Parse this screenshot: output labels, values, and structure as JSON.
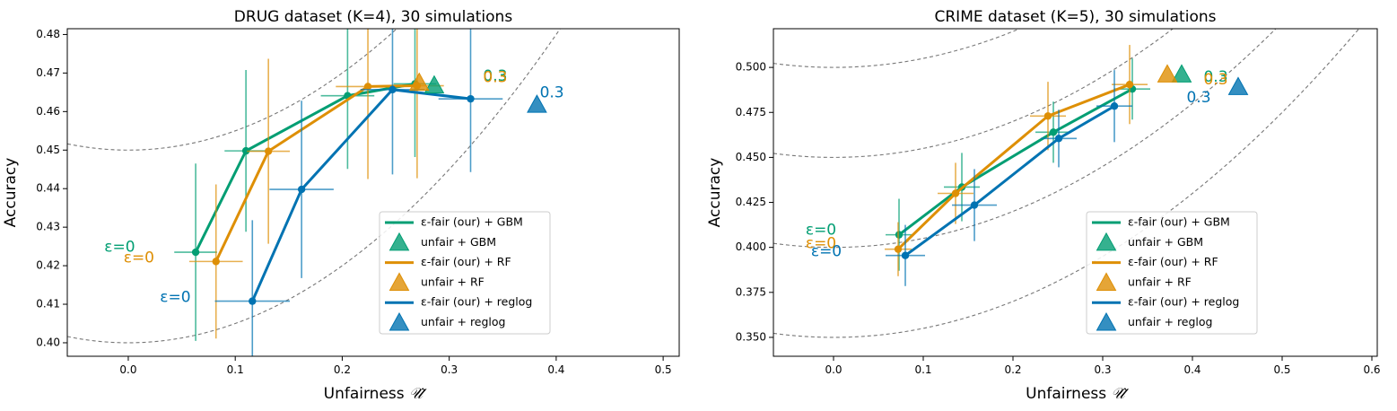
{
  "chart_data": [
    {
      "type": "scatter",
      "title": "DRUG dataset (K=4), 30 simulations",
      "xlabel": "Unfairness",
      "xlabel_symbol": "𝒰̂",
      "ylabel": "Accuracy",
      "xlim": [
        -0.057,
        0.515
      ],
      "ylim": [
        0.3965,
        0.4815
      ],
      "xticks": [
        0.0,
        0.1,
        0.2,
        0.3,
        0.4,
        0.5
      ],
      "xtick_labels": [
        "0.0",
        "0.1",
        "0.2",
        "0.3",
        "0.4",
        "0.5"
      ],
      "yticks": [
        0.4,
        0.41,
        0.42,
        0.43,
        0.44,
        0.45,
        0.46,
        0.47,
        0.48
      ],
      "ytick_labels": [
        "0.40",
        "0.41",
        "0.42",
        "0.43",
        "0.44",
        "0.45",
        "0.46",
        "0.47",
        "0.48"
      ],
      "contours": {
        "a": 0.5,
        "offsets": [
          0.4,
          0.45,
          0.5,
          0.55,
          0.6,
          0.65,
          0.7
        ]
      },
      "legend_position": "lower-right",
      "series": [
        {
          "name": "ε-fair (our) + GBM",
          "color": "#029e73",
          "points": [
            {
              "x": 0.063,
              "y": 0.4235,
              "xerr": 0.02,
              "yerr": 0.023
            },
            {
              "x": 0.11,
              "y": 0.4498,
              "xerr": 0.02,
              "yerr": 0.021
            },
            {
              "x": 0.205,
              "y": 0.4641,
              "xerr": 0.025,
              "yerr": 0.019
            },
            {
              "x": 0.268,
              "y": 0.4672,
              "xerr": 0.02,
              "yerr": 0.019
            }
          ],
          "unfair": {
            "x": 0.286,
            "y": 0.4665,
            "label": "unfair + GBM"
          },
          "annot_start": {
            "text": "ε=0",
            "x": -0.008,
            "y": 0.4248
          },
          "annot_end": {
            "text": "0.3",
            "x": 0.343,
            "y": 0.4692
          }
        },
        {
          "name": "ε-fair (our) + RF",
          "color": "#de8f05",
          "points": [
            {
              "x": 0.082,
              "y": 0.4211,
              "xerr": 0.025,
              "yerr": 0.02
            },
            {
              "x": 0.131,
              "y": 0.4497,
              "xerr": 0.02,
              "yerr": 0.024
            },
            {
              "x": 0.224,
              "y": 0.4665,
              "xerr": 0.03,
              "yerr": 0.024
            },
            {
              "x": 0.27,
              "y": 0.4667,
              "xerr": 0.025,
              "yerr": 0.024
            }
          ],
          "unfair": {
            "x": 0.272,
            "y": 0.4672,
            "label": "unfair + RF"
          },
          "annot_start": {
            "text": "ε=0",
            "x": 0.01,
            "y": 0.422
          },
          "annot_end": {
            "text": "0.3",
            "x": 0.343,
            "y": 0.4688
          }
        },
        {
          "name": "ε-fair (our) + reglog",
          "color": "#0173b2",
          "points": [
            {
              "x": 0.116,
              "y": 0.4108,
              "xerr": 0.035,
              "yerr": 0.021
            },
            {
              "x": 0.162,
              "y": 0.4398,
              "xerr": 0.03,
              "yerr": 0.023
            },
            {
              "x": 0.247,
              "y": 0.4657,
              "xerr": 0.03,
              "yerr": 0.022
            },
            {
              "x": 0.32,
              "y": 0.4633,
              "xerr": 0.03,
              "yerr": 0.019
            }
          ],
          "unfair": {
            "x": 0.382,
            "y": 0.4615,
            "label": "unfair + reglog"
          },
          "annot_start": {
            "text": "ε=0",
            "x": 0.044,
            "y": 0.4118
          },
          "annot_end": {
            "text": "0.3",
            "x": 0.396,
            "y": 0.4648
          }
        }
      ]
    },
    {
      "type": "scatter",
      "title": "CRIME dataset (K=5), 30 simulations",
      "xlabel": "Unfairness",
      "xlabel_symbol": "𝒰̂",
      "ylabel": "Accuracy",
      "xlim": [
        -0.067,
        0.606
      ],
      "ylim": [
        0.3395,
        0.5215
      ],
      "xticks": [
        0.0,
        0.1,
        0.2,
        0.3,
        0.4,
        0.5,
        0.6
      ],
      "xtick_labels": [
        "0.0",
        "0.1",
        "0.2",
        "0.3",
        "0.4",
        "0.5",
        "0.6"
      ],
      "yticks": [
        0.35,
        0.375,
        0.4,
        0.425,
        0.45,
        0.475,
        0.5
      ],
      "ytick_labels": [
        "0.350",
        "0.375",
        "0.400",
        "0.425",
        "0.450",
        "0.475",
        "0.500"
      ],
      "contours": {
        "a": 0.5,
        "offsets": [
          0.35,
          0.4,
          0.45,
          0.5,
          0.55,
          0.6,
          0.65,
          0.7
        ]
      },
      "legend_position": "lower-right",
      "series": [
        {
          "name": "ε-fair (our) + GBM",
          "color": "#029e73",
          "points": [
            {
              "x": 0.073,
              "y": 0.407,
              "xerr": 0.015,
              "yerr": 0.02
            },
            {
              "x": 0.143,
              "y": 0.4335,
              "xerr": 0.02,
              "yerr": 0.019
            },
            {
              "x": 0.245,
              "y": 0.464,
              "xerr": 0.02,
              "yerr": 0.017
            },
            {
              "x": 0.333,
              "y": 0.488,
              "xerr": 0.02,
              "yerr": 0.017
            }
          ],
          "unfair": {
            "x": 0.388,
            "y": 0.4955,
            "label": "unfair + GBM"
          },
          "annot_start": {
            "text": "ε=0",
            "x": -0.014,
            "y": 0.4095
          },
          "annot_end": {
            "text": "0.3",
            "x": 0.426,
            "y": 0.4945
          }
        },
        {
          "name": "ε-fair (our) + RF",
          "color": "#de8f05",
          "points": [
            {
              "x": 0.072,
              "y": 0.399,
              "xerr": 0.015,
              "yerr": 0.015
            },
            {
              "x": 0.136,
              "y": 0.43,
              "xerr": 0.02,
              "yerr": 0.017
            },
            {
              "x": 0.239,
              "y": 0.473,
              "xerr": 0.02,
              "yerr": 0.019
            },
            {
              "x": 0.33,
              "y": 0.4905,
              "xerr": 0.02,
              "yerr": 0.022
            }
          ],
          "unfair": {
            "x": 0.372,
            "y": 0.4955,
            "label": "unfair + RF"
          },
          "annot_start": {
            "text": "ε=0",
            "x": -0.014,
            "y": 0.402
          },
          "annot_end": {
            "text": "0.3",
            "x": 0.426,
            "y": 0.4932
          }
        },
        {
          "name": "ε-fair (our) + reglog",
          "color": "#0173b2",
          "points": [
            {
              "x": 0.08,
              "y": 0.3955,
              "xerr": 0.022,
              "yerr": 0.017
            },
            {
              "x": 0.157,
              "y": 0.4235,
              "xerr": 0.025,
              "yerr": 0.02
            },
            {
              "x": 0.251,
              "y": 0.4605,
              "xerr": 0.02,
              "yerr": 0.016
            },
            {
              "x": 0.313,
              "y": 0.4785,
              "xerr": 0.02,
              "yerr": 0.02
            }
          ],
          "unfair": {
            "x": 0.451,
            "y": 0.4885,
            "label": "unfair + reglog"
          },
          "annot_start": {
            "text": "ε=0",
            "x": -0.008,
            "y": 0.3975
          },
          "annot_end": {
            "text": "0.3",
            "x": 0.407,
            "y": 0.483
          }
        }
      ]
    }
  ]
}
